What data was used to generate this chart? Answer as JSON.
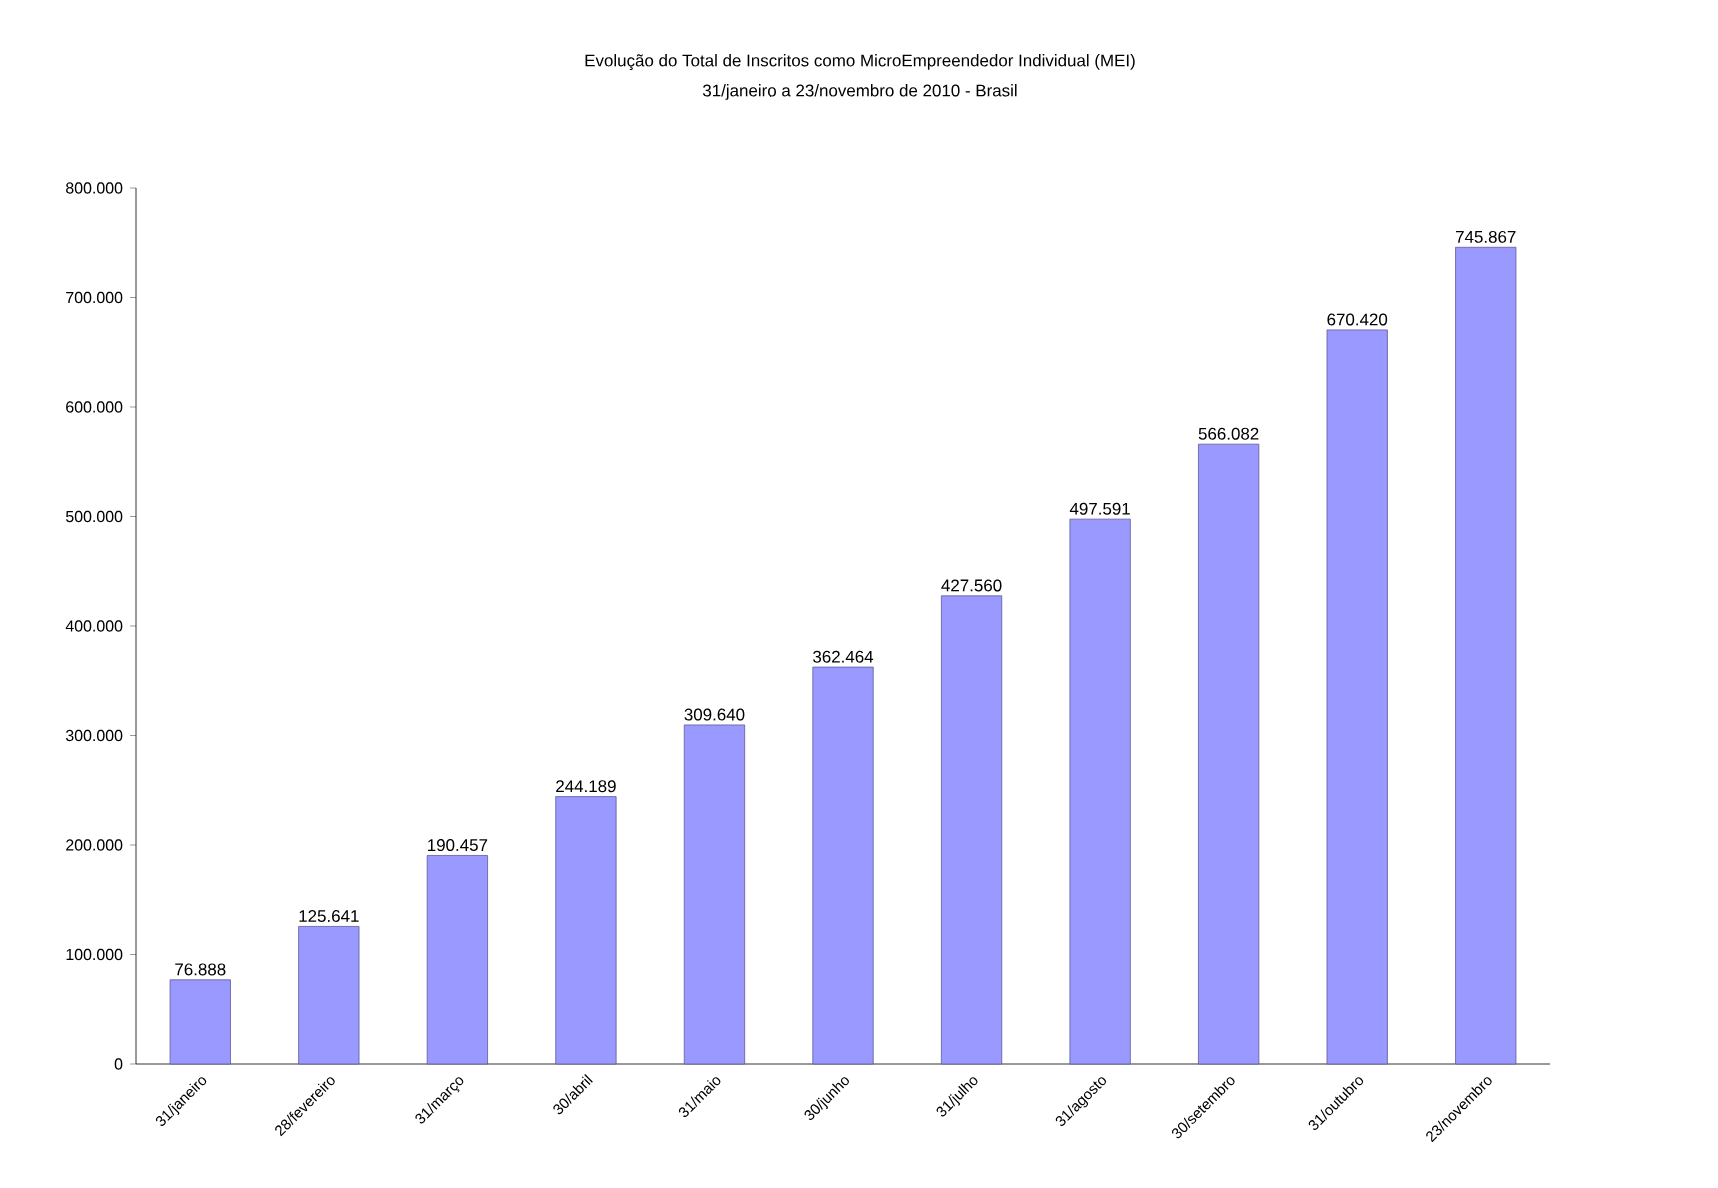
{
  "chart_data": {
    "type": "bar",
    "title": "Evolução do Total de Inscritos como MicroEmpreendedor Individual (MEI)",
    "subtitle": "31/janeiro a 23/novembro de 2010 - Brasil",
    "categories": [
      "31/janeiro",
      "28/fevereiro",
      "31/março",
      "30/abril",
      "31/maio",
      "30/junho",
      "31/julho",
      "31/agosto",
      "30/setembro",
      "31/outubro",
      "23/novembro"
    ],
    "values": [
      76888,
      125641,
      190457,
      244189,
      309640,
      362464,
      427560,
      497591,
      566082,
      670420,
      745867
    ],
    "value_labels": [
      "76.888",
      "125.641",
      "190.457",
      "244.189",
      "309.640",
      "362.464",
      "427.560",
      "497.591",
      "566.082",
      "670.420",
      "745.867"
    ],
    "color": "#9999ff",
    "ylim": [
      0,
      800000
    ],
    "yticks": [
      {
        "value": 0,
        "label": "0"
      },
      {
        "value": 100000,
        "label": "100.000"
      },
      {
        "value": 200000,
        "label": "200.000"
      },
      {
        "value": 300000,
        "label": "300.000"
      },
      {
        "value": 400000,
        "label": "400.000"
      },
      {
        "value": 500000,
        "label": "500.000"
      },
      {
        "value": 600000,
        "label": "600.000"
      },
      {
        "value": 700000,
        "label": "700.000"
      },
      {
        "value": 800000,
        "label": "800.000"
      }
    ]
  }
}
